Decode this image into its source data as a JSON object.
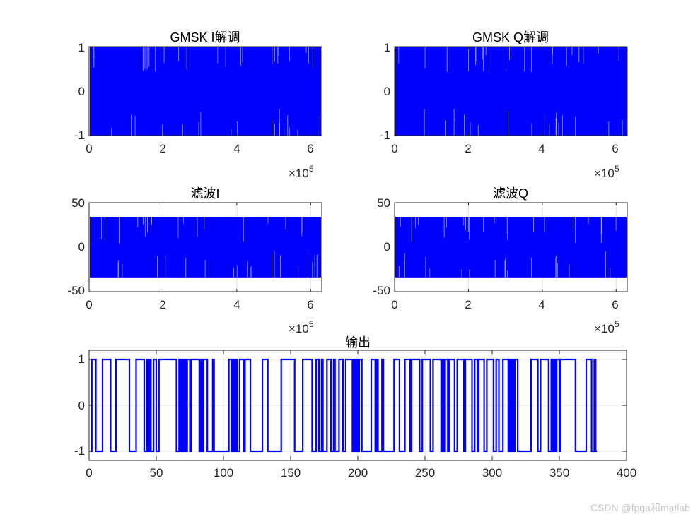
{
  "figure": {
    "background": "#ffffff",
    "line_color": "#0000ff",
    "watermark": "CSDN @fpga和matlab"
  },
  "chart_data": [
    {
      "id": "i_demod",
      "type": "line",
      "title": "GMSK I解调",
      "xlabel": "",
      "ylabel": "",
      "xlim": [
        0,
        630000
      ],
      "ylim": [
        -1,
        1
      ],
      "xticks": [
        "0",
        "2",
        "4",
        "6"
      ],
      "yticks": [
        "1",
        "0",
        "-1"
      ],
      "x_exponent": "×10",
      "x_exponent_power": "5",
      "grid": false,
      "description": "Dense oscillating signal filling the range [-1, 1] across ~6.3e5 samples"
    },
    {
      "id": "q_demod",
      "type": "line",
      "title": "GMSK Q解调",
      "xlabel": "",
      "ylabel": "",
      "xlim": [
        0,
        630000
      ],
      "ylim": [
        -1,
        1
      ],
      "xticks": [
        "0",
        "2",
        "4",
        "6"
      ],
      "yticks": [
        "1",
        "0",
        "-1"
      ],
      "x_exponent": "×10",
      "x_exponent_power": "5",
      "grid": false,
      "description": "Dense oscillating signal filling the range [-1, 1] across ~6.3e5 samples"
    },
    {
      "id": "filtered_i",
      "type": "line",
      "title": "滤波I",
      "xlabel": "",
      "ylabel": "",
      "xlim": [
        0,
        630000
      ],
      "ylim": [
        -50,
        50
      ],
      "xticks": [
        "0",
        "2",
        "4",
        "6"
      ],
      "yticks": [
        "50",
        "0",
        "-50"
      ],
      "x_exponent": "×10",
      "x_exponent_power": "5",
      "grid": true,
      "envelope": [
        -34,
        34
      ],
      "description": "Dense filtered signal with amplitude about ±34"
    },
    {
      "id": "filtered_q",
      "type": "line",
      "title": "滤波Q",
      "xlabel": "",
      "ylabel": "",
      "xlim": [
        0,
        630000
      ],
      "ylim": [
        -50,
        50
      ],
      "xticks": [
        "0",
        "2",
        "4",
        "6"
      ],
      "yticks": [
        "50",
        "0",
        "-50"
      ],
      "x_exponent": "×10",
      "x_exponent_power": "5",
      "grid": true,
      "envelope": [
        -34,
        34
      ],
      "description": "Dense filtered signal with amplitude about ±34"
    },
    {
      "id": "output",
      "type": "line",
      "title": "输出",
      "xlabel": "",
      "ylabel": "",
      "xlim": [
        0,
        400
      ],
      "ylim": [
        -1.2,
        1.2
      ],
      "xticks": [
        "0",
        "50",
        "100",
        "150",
        "200",
        "250",
        "300",
        "350",
        "400"
      ],
      "yticks": [
        "1",
        "0",
        "-1"
      ],
      "grid": true,
      "step": true,
      "x_start": 1,
      "bits": [
        -1,
        1,
        1,
        1,
        -1,
        -1,
        -1,
        -1,
        -1,
        1,
        1,
        1,
        1,
        1,
        1,
        -1,
        -1,
        -1,
        -1,
        1,
        1,
        1,
        1,
        1,
        1,
        1,
        1,
        1,
        1,
        -1,
        -1,
        -1,
        -1,
        -1,
        1,
        1,
        1,
        1,
        1,
        1,
        -1,
        -1,
        1,
        -1,
        1,
        -1,
        -1,
        1,
        1,
        -1,
        -1,
        1,
        1,
        1,
        1,
        1,
        1,
        1,
        1,
        1,
        1,
        1,
        1,
        1,
        -1,
        -1,
        1,
        -1,
        1,
        -1,
        1,
        -1,
        1,
        1,
        -1,
        1,
        1,
        1,
        1,
        1,
        1,
        -1,
        1,
        -1,
        1,
        1,
        1,
        -1,
        -1,
        -1,
        -1,
        1,
        -1,
        -1,
        -1,
        -1,
        -1,
        -1,
        -1,
        -1,
        -1,
        -1,
        -1,
        1,
        1,
        -1,
        1,
        -1,
        1,
        -1,
        -1,
        1,
        1,
        1,
        -1,
        1,
        1,
        1,
        1,
        -1,
        -1,
        -1,
        -1,
        -1,
        -1,
        -1,
        -1,
        -1,
        1,
        1,
        1,
        1,
        -1,
        -1,
        -1,
        -1,
        -1,
        -1,
        -1,
        -1,
        -1,
        -1,
        1,
        1,
        1,
        1,
        1,
        1,
        1,
        1,
        1,
        1,
        -1,
        -1,
        -1,
        -1,
        -1,
        -1,
        1,
        1,
        1,
        1,
        1,
        1,
        1,
        -1,
        -1,
        -1,
        1,
        1,
        -1,
        -1,
        1,
        -1,
        -1,
        -1,
        1,
        1,
        1,
        -1,
        -1,
        1,
        -1,
        -1,
        -1,
        1,
        1,
        1,
        -1,
        -1,
        1,
        1,
        1,
        1,
        1,
        -1,
        1,
        -1,
        1,
        -1,
        1,
        1,
        -1,
        -1,
        -1,
        -1,
        -1,
        -1,
        -1,
        1,
        1,
        1,
        -1,
        1,
        -1,
        -1,
        -1,
        1,
        -1,
        -1,
        -1,
        -1,
        -1,
        -1,
        -1,
        -1,
        1,
        1,
        1,
        1,
        -1,
        -1,
        -1,
        -1,
        1,
        1,
        1,
        1,
        -1,
        1,
        1,
        1,
        1,
        1,
        1,
        -1,
        -1,
        1,
        1,
        1,
        1,
        1,
        1,
        -1,
        -1,
        1,
        1,
        1,
        1,
        1,
        1,
        -1,
        1,
        -1,
        1,
        1,
        -1,
        1,
        1,
        1,
        1,
        -1,
        -1,
        1,
        1,
        1,
        1,
        1,
        -1,
        1,
        1,
        1,
        1,
        1,
        -1,
        -1,
        1,
        1,
        -1,
        1,
        1,
        1,
        1,
        -1,
        -1,
        1,
        1,
        1,
        1,
        1,
        -1,
        -1,
        1,
        1,
        -1,
        -1,
        -1,
        1,
        1,
        1,
        1,
        -1,
        1,
        -1,
        1,
        -1,
        1,
        1,
        -1,
        -1,
        -1,
        -1,
        -1,
        -1,
        -1,
        -1,
        -1,
        -1,
        1,
        1,
        1,
        1,
        1,
        -1,
        -1,
        1,
        1,
        1,
        1,
        1,
        1,
        -1,
        -1,
        1,
        -1,
        1,
        -1,
        1,
        1,
        -1,
        1,
        1,
        1,
        1,
        1,
        1,
        1,
        1,
        1,
        1,
        1,
        -1,
        -1,
        -1,
        -1,
        -1,
        -1,
        -1,
        -1,
        1,
        1,
        1,
        1,
        -1,
        -1,
        1,
        -1
      ]
    }
  ]
}
